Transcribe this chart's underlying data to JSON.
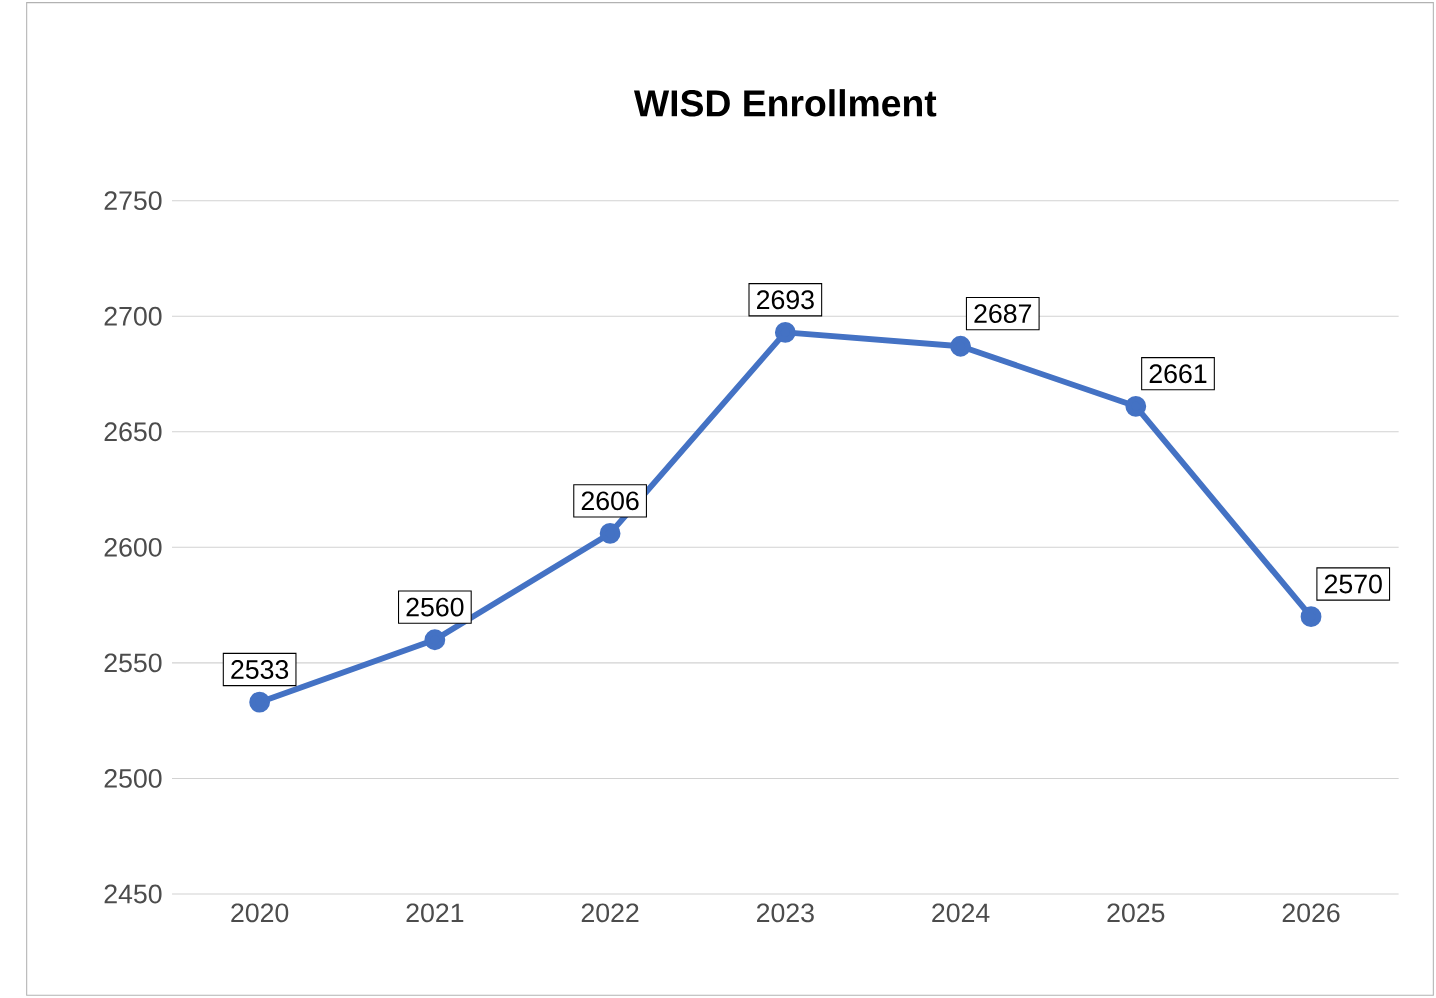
{
  "chart_data": {
    "type": "line",
    "title": "WISD Enrollment",
    "categories": [
      "2020",
      "2021",
      "2022",
      "2023",
      "2024",
      "2025",
      "2026"
    ],
    "values": [
      2533,
      2560,
      2606,
      2693,
      2687,
      2661,
      2570
    ],
    "color": "#4472c4",
    "marker": "circle",
    "line_style": "solid",
    "ylim": [
      2450,
      2750
    ],
    "yticks": [
      2450,
      2500,
      2550,
      2600,
      2650,
      2700,
      2750
    ],
    "grid": "y",
    "data_labels": true
  }
}
